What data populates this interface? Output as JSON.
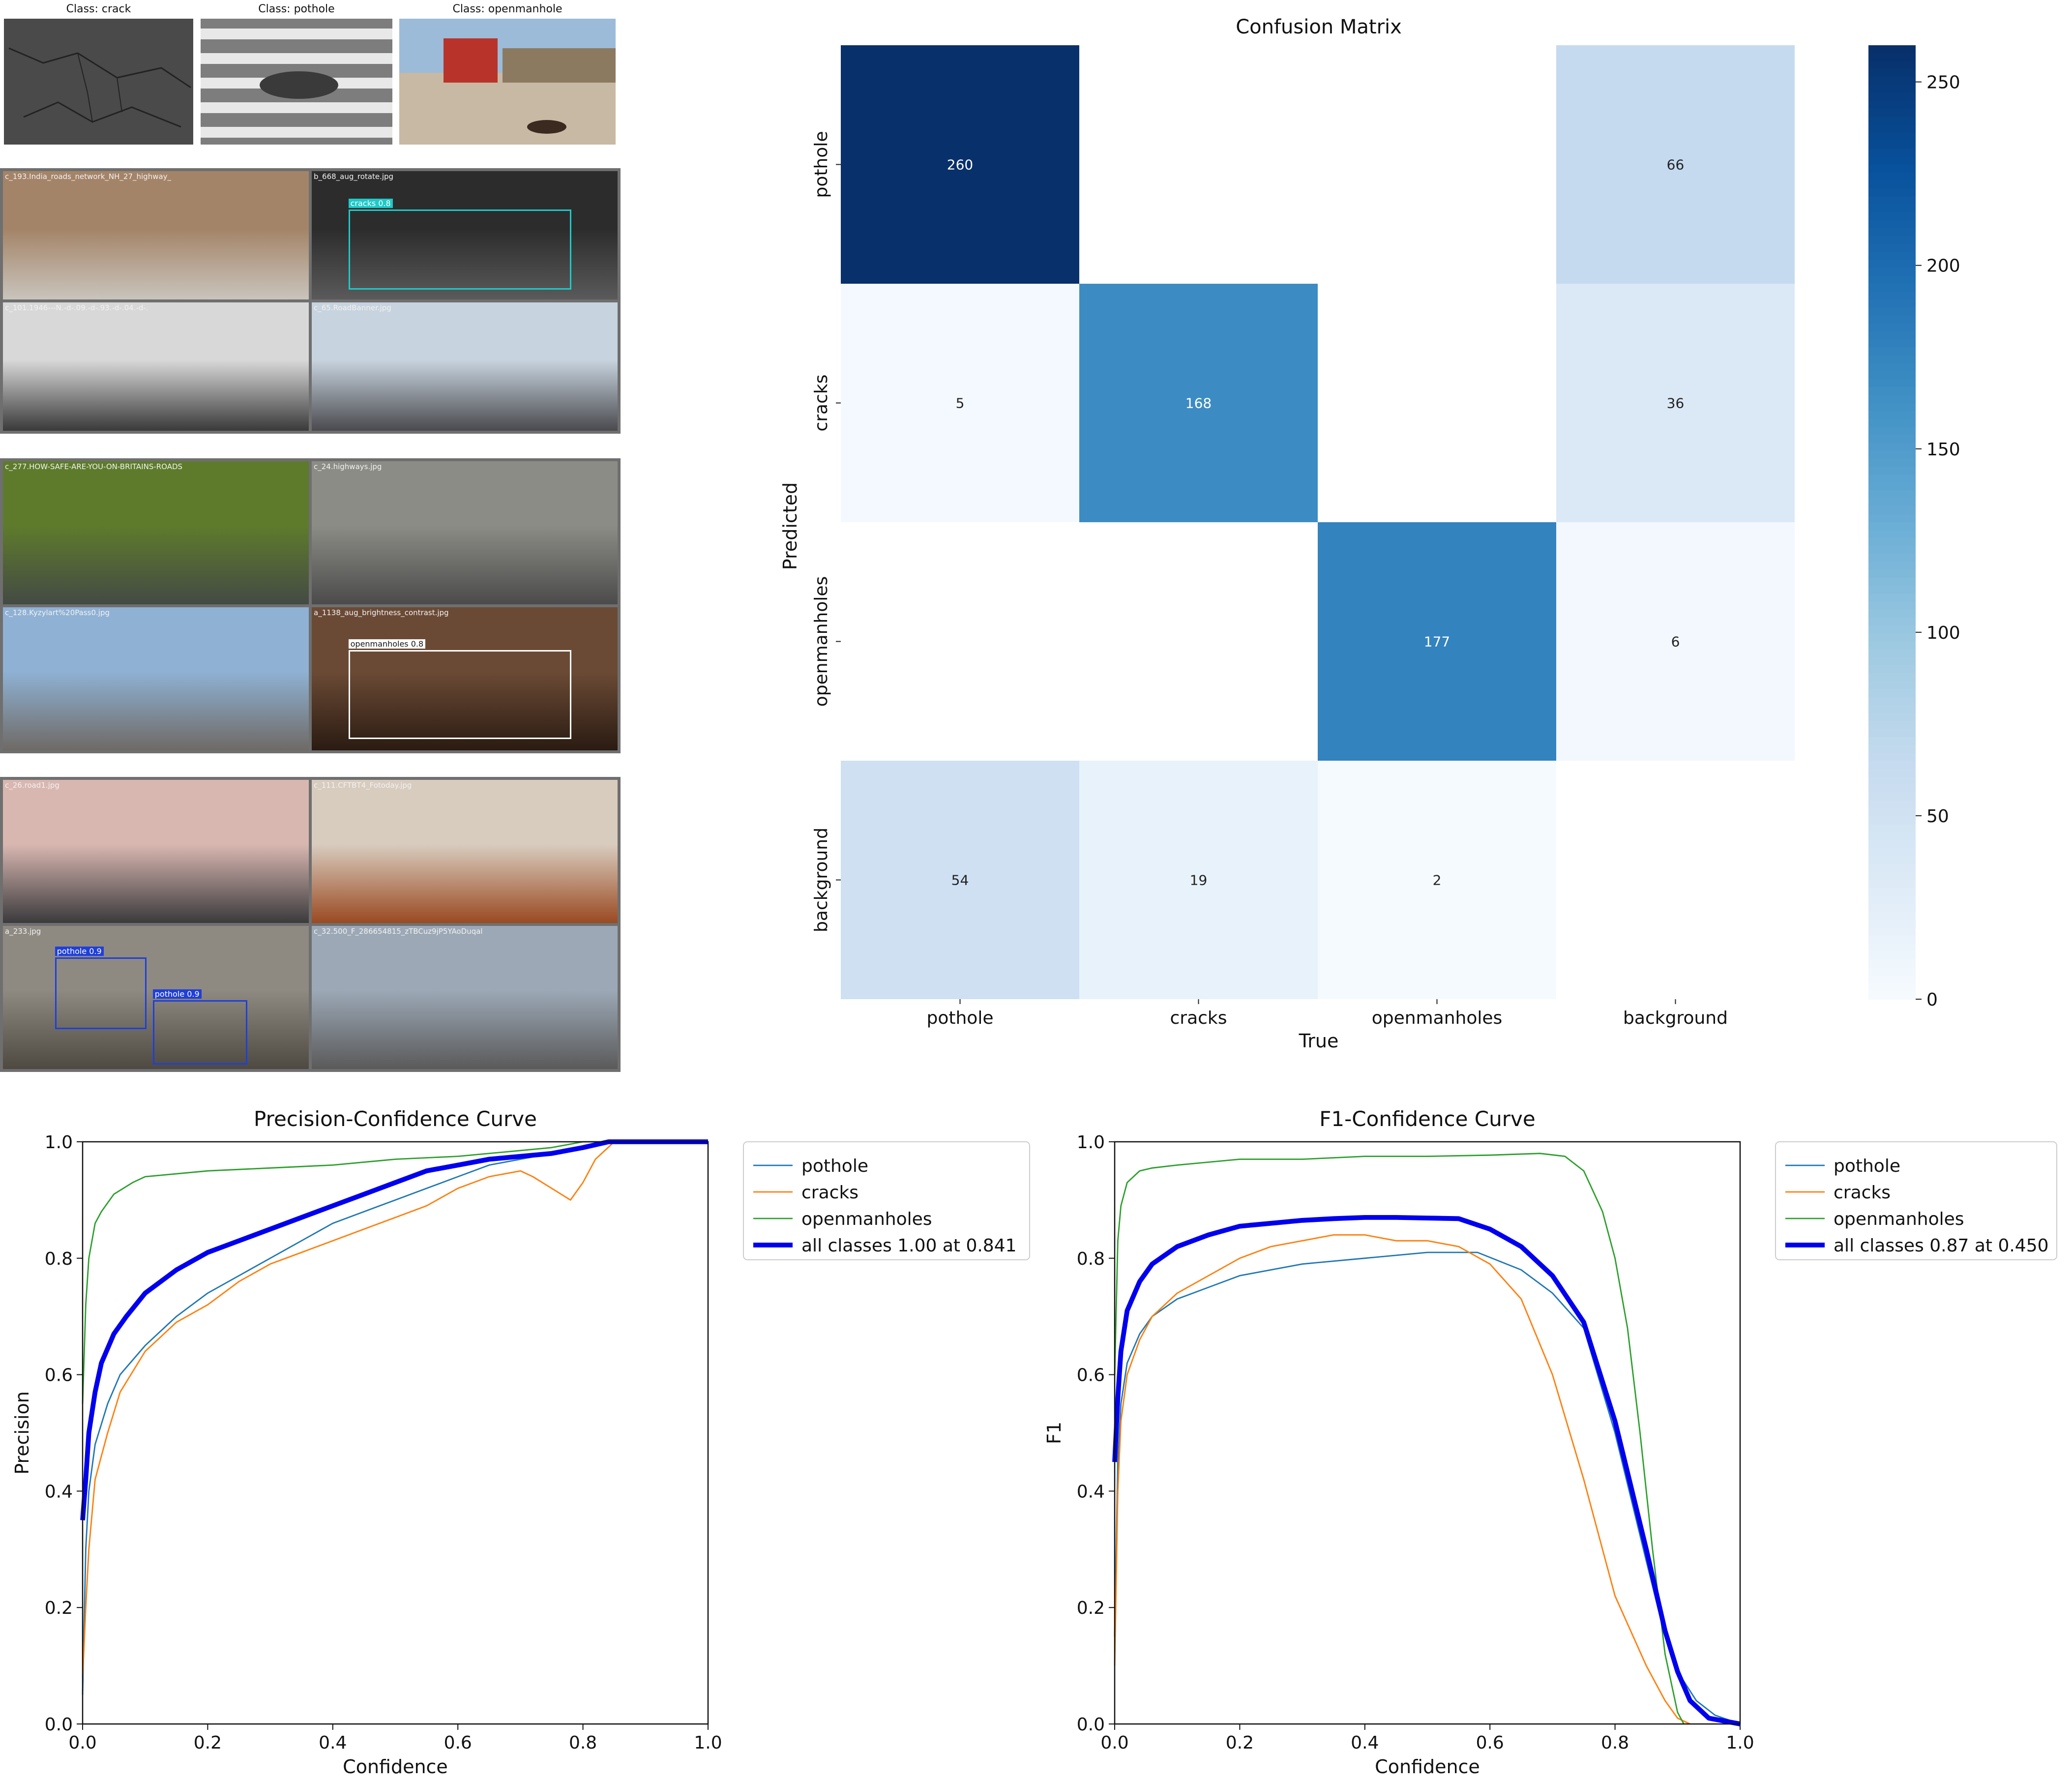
{
  "class_samples": [
    {
      "title": "Class: crack",
      "bg": "#4a4a4a"
    },
    {
      "title": "Class: pothole",
      "bg": "#9a9a9a"
    },
    {
      "title": "Class: openmanhole",
      "bg": "#b98f6a"
    }
  ],
  "grid_blocks": [
    {
      "cells": [
        {
          "caption": "c_193.India_roads_network_NH_27_highway_",
          "top": "#a48468",
          "bottom": "#c9c4bc"
        },
        {
          "caption": "b_668_aug_rotate.jpg",
          "top": "#2c2c2c",
          "bottom": "#5a5a5a",
          "box": {
            "label": "cracks 0.8",
            "color": "#1fc9c9"
          }
        },
        {
          "caption": "c_101.1946---N.-d-.09.-d-.93.-d-.04.-d-.",
          "top": "#d8d8d8",
          "bottom": "#3a3a3a"
        },
        {
          "caption": "c_65.RoadBanner.jpg",
          "top": "#c7d3de",
          "bottom": "#4a4a4f"
        }
      ]
    },
    {
      "cells": [
        {
          "caption": "c_277.HOW-SAFE-ARE-YOU-ON-BRITAINS-ROADS",
          "top": "#5e7b2c",
          "bottom": "#444a44"
        },
        {
          "caption": "c_24.highways.jpg",
          "top": "#8c8c86",
          "bottom": "#4b4b4b"
        },
        {
          "caption": "c_128.Kyzylart%20Pass0.jpg",
          "top": "#8fb1d4",
          "bottom": "#6e6a66"
        },
        {
          "caption": "a_1138_aug_brightness_contrast.jpg",
          "top": "#6b4a35",
          "bottom": "#2a1b12",
          "box": {
            "label": "openmanholes 0.8",
            "color": "#ffffff"
          }
        }
      ]
    },
    {
      "cells": [
        {
          "caption": "c_26.road1.jpg",
          "top": "#d9b7b1",
          "bottom": "#3b3a3c"
        },
        {
          "caption": "c_111.CFTBT4_Fotoday.jpg",
          "top": "#d8ccbf",
          "bottom": "#9a4a22"
        },
        {
          "caption": "a_233.jpg",
          "top": "#8e8a82",
          "bottom": "#4e4a42",
          "box": {
            "label": "pothole 0.9",
            "color": "#1f3fd9"
          },
          "box2": {
            "label": "pothole 0.9",
            "color": "#1f3fd9"
          }
        },
        {
          "caption": "c_32.500_F_286654815_zTBCuz9jP5YAoDuqal",
          "top": "#9ca8b6",
          "bottom": "#5a5a5a"
        }
      ]
    }
  ],
  "chart_data": [
    {
      "type": "heatmap",
      "title": "Confusion Matrix",
      "xlabel": "True",
      "ylabel": "Predicted",
      "x_categories": [
        "pothole",
        "cracks",
        "openmanholes",
        "background"
      ],
      "y_categories": [
        "pothole",
        "cracks",
        "openmanholes",
        "background"
      ],
      "values": [
        [
          260,
          null,
          null,
          66
        ],
        [
          5,
          168,
          null,
          36
        ],
        [
          null,
          null,
          177,
          6
        ],
        [
          54,
          19,
          2,
          null
        ]
      ],
      "colorbar": {
        "min": 0,
        "max": 260,
        "ticks": [
          0,
          50,
          100,
          150,
          200,
          250
        ]
      },
      "colormap": [
        "#f7fbff",
        "#deebf7",
        "#c6dbef",
        "#9ecae1",
        "#6baed6",
        "#4292c6",
        "#2171b5",
        "#08519c",
        "#08306b"
      ]
    },
    {
      "type": "line",
      "title": "Precision-Confidence Curve",
      "xlabel": "Confidence",
      "ylabel": "Precision",
      "xlim": [
        0,
        1
      ],
      "ylim": [
        0,
        1
      ],
      "xticks": [
        "0.0",
        "0.2",
        "0.4",
        "0.6",
        "0.8",
        "1.0"
      ],
      "yticks": [
        "0.0",
        "0.2",
        "0.4",
        "0.6",
        "0.8",
        "1.0"
      ],
      "legend_position": "outside-right",
      "series": [
        {
          "name": "pothole",
          "color": "#1f77b4",
          "width": 2,
          "x": [
            0,
            0.005,
            0.01,
            0.02,
            0.04,
            0.06,
            0.1,
            0.15,
            0.2,
            0.25,
            0.3,
            0.35,
            0.4,
            0.45,
            0.5,
            0.55,
            0.6,
            0.65,
            0.7,
            0.75,
            0.8,
            0.83,
            0.85,
            0.9,
            0.95,
            1.0
          ],
          "y": [
            0.05,
            0.3,
            0.4,
            0.48,
            0.55,
            0.6,
            0.65,
            0.7,
            0.74,
            0.77,
            0.8,
            0.83,
            0.86,
            0.88,
            0.9,
            0.92,
            0.94,
            0.96,
            0.97,
            0.98,
            0.99,
            1.0,
            1.0,
            1.0,
            1.0,
            1.0
          ]
        },
        {
          "name": "cracks",
          "color": "#ff7f0e",
          "width": 2,
          "x": [
            0,
            0.005,
            0.01,
            0.02,
            0.04,
            0.06,
            0.1,
            0.15,
            0.2,
            0.25,
            0.3,
            0.35,
            0.4,
            0.45,
            0.5,
            0.55,
            0.6,
            0.65,
            0.7,
            0.72,
            0.75,
            0.78,
            0.8,
            0.82,
            0.84,
            0.85,
            0.9,
            0.95,
            1.0
          ],
          "y": [
            0.08,
            0.2,
            0.3,
            0.42,
            0.5,
            0.57,
            0.64,
            0.69,
            0.72,
            0.76,
            0.79,
            0.81,
            0.83,
            0.85,
            0.87,
            0.89,
            0.92,
            0.94,
            0.95,
            0.94,
            0.92,
            0.9,
            0.93,
            0.97,
            0.99,
            1.0,
            1.0,
            1.0,
            1.0
          ]
        },
        {
          "name": "openmanholes",
          "color": "#2ca02c",
          "width": 2,
          "x": [
            0,
            0.005,
            0.01,
            0.02,
            0.03,
            0.05,
            0.08,
            0.1,
            0.2,
            0.3,
            0.4,
            0.5,
            0.6,
            0.7,
            0.75,
            0.8,
            0.85,
            0.9,
            1.0
          ],
          "y": [
            0.55,
            0.72,
            0.8,
            0.86,
            0.88,
            0.91,
            0.93,
            0.94,
            0.95,
            0.955,
            0.96,
            0.97,
            0.975,
            0.985,
            0.99,
            1.0,
            1.0,
            1.0,
            1.0
          ]
        },
        {
          "name": "all classes 1.00 at 0.841",
          "color": "#0000ee",
          "width": 7,
          "x": [
            0,
            0.005,
            0.01,
            0.02,
            0.03,
            0.05,
            0.07,
            0.1,
            0.15,
            0.2,
            0.25,
            0.3,
            0.35,
            0.4,
            0.45,
            0.5,
            0.55,
            0.6,
            0.65,
            0.7,
            0.75,
            0.8,
            0.841,
            0.9,
            1.0
          ],
          "y": [
            0.35,
            0.42,
            0.5,
            0.57,
            0.62,
            0.67,
            0.7,
            0.74,
            0.78,
            0.81,
            0.83,
            0.85,
            0.87,
            0.89,
            0.91,
            0.93,
            0.95,
            0.96,
            0.97,
            0.975,
            0.98,
            0.99,
            1.0,
            1.0,
            1.0
          ]
        }
      ]
    },
    {
      "type": "line",
      "title": "F1-Confidence Curve",
      "xlabel": "Confidence",
      "ylabel": "F1",
      "xlim": [
        0,
        1
      ],
      "ylim": [
        0,
        1
      ],
      "xticks": [
        "0.0",
        "0.2",
        "0.4",
        "0.6",
        "0.8",
        "1.0"
      ],
      "yticks": [
        "0.0",
        "0.2",
        "0.4",
        "0.6",
        "0.8",
        "1.0"
      ],
      "legend_position": "outside-right",
      "series": [
        {
          "name": "pothole",
          "color": "#1f77b4",
          "width": 2,
          "x": [
            0,
            0.005,
            0.01,
            0.02,
            0.04,
            0.06,
            0.1,
            0.15,
            0.2,
            0.3,
            0.4,
            0.5,
            0.58,
            0.65,
            0.7,
            0.75,
            0.8,
            0.85,
            0.88,
            0.9,
            0.93,
            0.96,
            1.0
          ],
          "y": [
            0.15,
            0.45,
            0.55,
            0.62,
            0.67,
            0.7,
            0.73,
            0.75,
            0.77,
            0.79,
            0.8,
            0.81,
            0.81,
            0.78,
            0.74,
            0.68,
            0.5,
            0.28,
            0.15,
            0.09,
            0.04,
            0.015,
            0.0
          ]
        },
        {
          "name": "cracks",
          "color": "#ff7f0e",
          "width": 2,
          "x": [
            0,
            0.005,
            0.01,
            0.02,
            0.04,
            0.06,
            0.1,
            0.15,
            0.2,
            0.25,
            0.3,
            0.35,
            0.4,
            0.45,
            0.5,
            0.55,
            0.6,
            0.65,
            0.7,
            0.75,
            0.8,
            0.85,
            0.88,
            0.9,
            0.92
          ],
          "y": [
            0.1,
            0.4,
            0.52,
            0.6,
            0.66,
            0.7,
            0.74,
            0.77,
            0.8,
            0.82,
            0.83,
            0.84,
            0.84,
            0.83,
            0.83,
            0.82,
            0.79,
            0.73,
            0.6,
            0.42,
            0.22,
            0.1,
            0.04,
            0.01,
            0.0
          ]
        },
        {
          "name": "openmanholes",
          "color": "#2ca02c",
          "width": 2,
          "x": [
            0,
            0.005,
            0.01,
            0.02,
            0.04,
            0.06,
            0.1,
            0.2,
            0.3,
            0.4,
            0.5,
            0.6,
            0.68,
            0.72,
            0.75,
            0.78,
            0.8,
            0.82,
            0.84,
            0.86,
            0.88,
            0.9,
            0.91
          ],
          "y": [
            0.6,
            0.83,
            0.89,
            0.93,
            0.95,
            0.955,
            0.96,
            0.97,
            0.97,
            0.975,
            0.975,
            0.977,
            0.98,
            0.975,
            0.95,
            0.88,
            0.8,
            0.68,
            0.5,
            0.3,
            0.12,
            0.02,
            0.0
          ]
        },
        {
          "name": "all classes 0.87 at 0.450",
          "color": "#0000ee",
          "width": 7,
          "x": [
            0,
            0.005,
            0.01,
            0.02,
            0.04,
            0.06,
            0.1,
            0.15,
            0.2,
            0.25,
            0.3,
            0.35,
            0.4,
            0.45,
            0.5,
            0.55,
            0.6,
            0.65,
            0.7,
            0.75,
            0.8,
            0.85,
            0.88,
            0.9,
            0.92,
            0.95,
            1.0
          ],
          "y": [
            0.45,
            0.56,
            0.64,
            0.71,
            0.76,
            0.79,
            0.82,
            0.84,
            0.855,
            0.86,
            0.865,
            0.868,
            0.87,
            0.87,
            0.869,
            0.868,
            0.85,
            0.82,
            0.77,
            0.69,
            0.52,
            0.3,
            0.16,
            0.09,
            0.04,
            0.01,
            0.0
          ]
        }
      ]
    }
  ]
}
